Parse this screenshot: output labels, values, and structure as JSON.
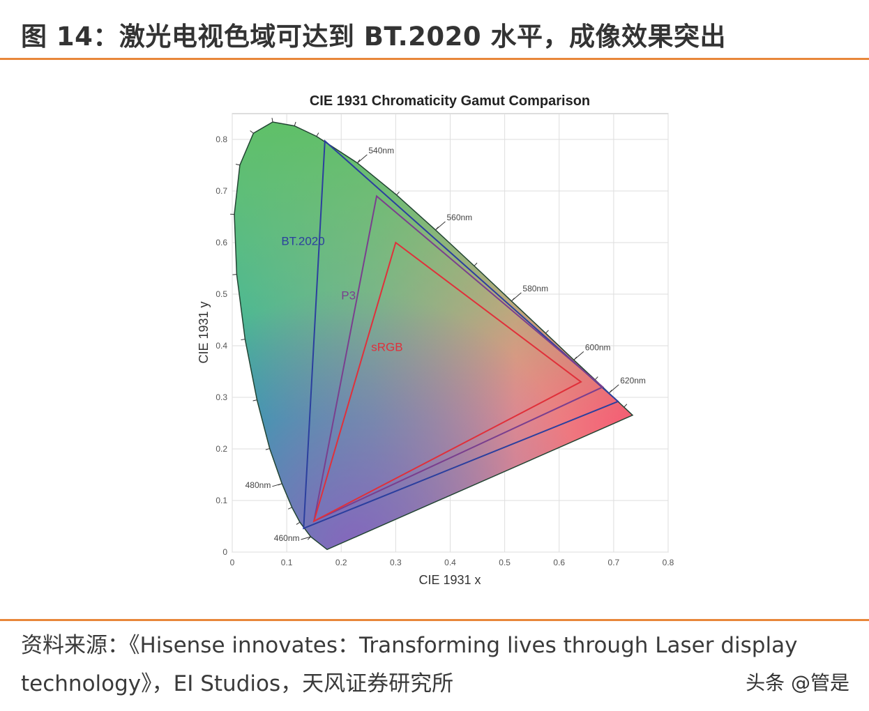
{
  "header": {
    "title": "图 14：激光电视色域可达到 BT.2020 水平，成像效果突出"
  },
  "footer": {
    "source_line1": "资料来源：《Hisense innovates：Transforming lives through Laser display",
    "source_line2": "technology》，EI Studios，天风证券研究所",
    "watermark": "头条 @管是"
  },
  "colors": {
    "accent": "#e8873a",
    "bt2020": "#2b3f9e",
    "p3": "#7a3f8e",
    "srgb": "#e0303a"
  },
  "chart_data": {
    "type": "line",
    "title": "CIE 1931 Chromaticity Gamut Comparison",
    "xlabel": "CIE 1931 x",
    "ylabel": "CIE 1931 y",
    "xlim": [
      0,
      0.8
    ],
    "ylim": [
      0,
      0.85
    ],
    "xticks": [
      "0",
      "0.1",
      "0.2",
      "0.3",
      "0.4",
      "0.5",
      "0.6",
      "0.7",
      "0.8"
    ],
    "yticks": [
      "0",
      "0.1",
      "0.2",
      "0.3",
      "0.4",
      "0.5",
      "0.6",
      "0.7",
      "0.8"
    ],
    "grid": true,
    "spectral_locus": [
      [
        0.1741,
        0.005
      ],
      [
        0.144,
        0.0297
      ],
      [
        0.1241,
        0.0578
      ],
      [
        0.1096,
        0.0868
      ],
      [
        0.0913,
        0.1327
      ],
      [
        0.0687,
        0.2007
      ],
      [
        0.0454,
        0.295
      ],
      [
        0.0235,
        0.4127
      ],
      [
        0.0082,
        0.5384
      ],
      [
        0.0039,
        0.6548
      ],
      [
        0.0139,
        0.7502
      ],
      [
        0.0389,
        0.812
      ],
      [
        0.0743,
        0.8338
      ],
      [
        0.1142,
        0.8262
      ],
      [
        0.1547,
        0.8059
      ],
      [
        0.2296,
        0.7543
      ],
      [
        0.3016,
        0.6923
      ],
      [
        0.3731,
        0.6245
      ],
      [
        0.4441,
        0.5547
      ],
      [
        0.5125,
        0.4866
      ],
      [
        0.5752,
        0.4242
      ],
      [
        0.627,
        0.3725
      ],
      [
        0.6658,
        0.334
      ],
      [
        0.6915,
        0.3083
      ],
      [
        0.719,
        0.2809
      ],
      [
        0.7347,
        0.2653
      ]
    ],
    "wavelength_labels": [
      {
        "label": "460nm",
        "x": 0.144,
        "y": 0.0297,
        "side": "left"
      },
      {
        "label": "480nm",
        "x": 0.0913,
        "y": 0.1327,
        "side": "left"
      },
      {
        "label": "540nm",
        "x": 0.2296,
        "y": 0.7543,
        "side": "right"
      },
      {
        "label": "560nm",
        "x": 0.3731,
        "y": 0.6245,
        "side": "right"
      },
      {
        "label": "580nm",
        "x": 0.5125,
        "y": 0.4866,
        "side": "right"
      },
      {
        "label": "600nm",
        "x": 0.627,
        "y": 0.3725,
        "side": "right"
      },
      {
        "label": "620nm",
        "x": 0.6915,
        "y": 0.3083,
        "side": "right"
      }
    ],
    "series": [
      {
        "name": "BT.2020",
        "color": "#2b3f9e",
        "points": [
          [
            0.708,
            0.292
          ],
          [
            0.17,
            0.797
          ],
          [
            0.131,
            0.046
          ]
        ],
        "label_at": [
          0.09,
          0.595
        ]
      },
      {
        "name": "P3",
        "color": "#7a3f8e",
        "points": [
          [
            0.68,
            0.32
          ],
          [
            0.265,
            0.69
          ],
          [
            0.15,
            0.06
          ]
        ],
        "label_at": [
          0.2,
          0.49
        ]
      },
      {
        "name": "sRGB",
        "color": "#e0303a",
        "points": [
          [
            0.64,
            0.33
          ],
          [
            0.3,
            0.6
          ],
          [
            0.15,
            0.06
          ]
        ],
        "label_at": [
          0.255,
          0.39
        ]
      }
    ]
  }
}
